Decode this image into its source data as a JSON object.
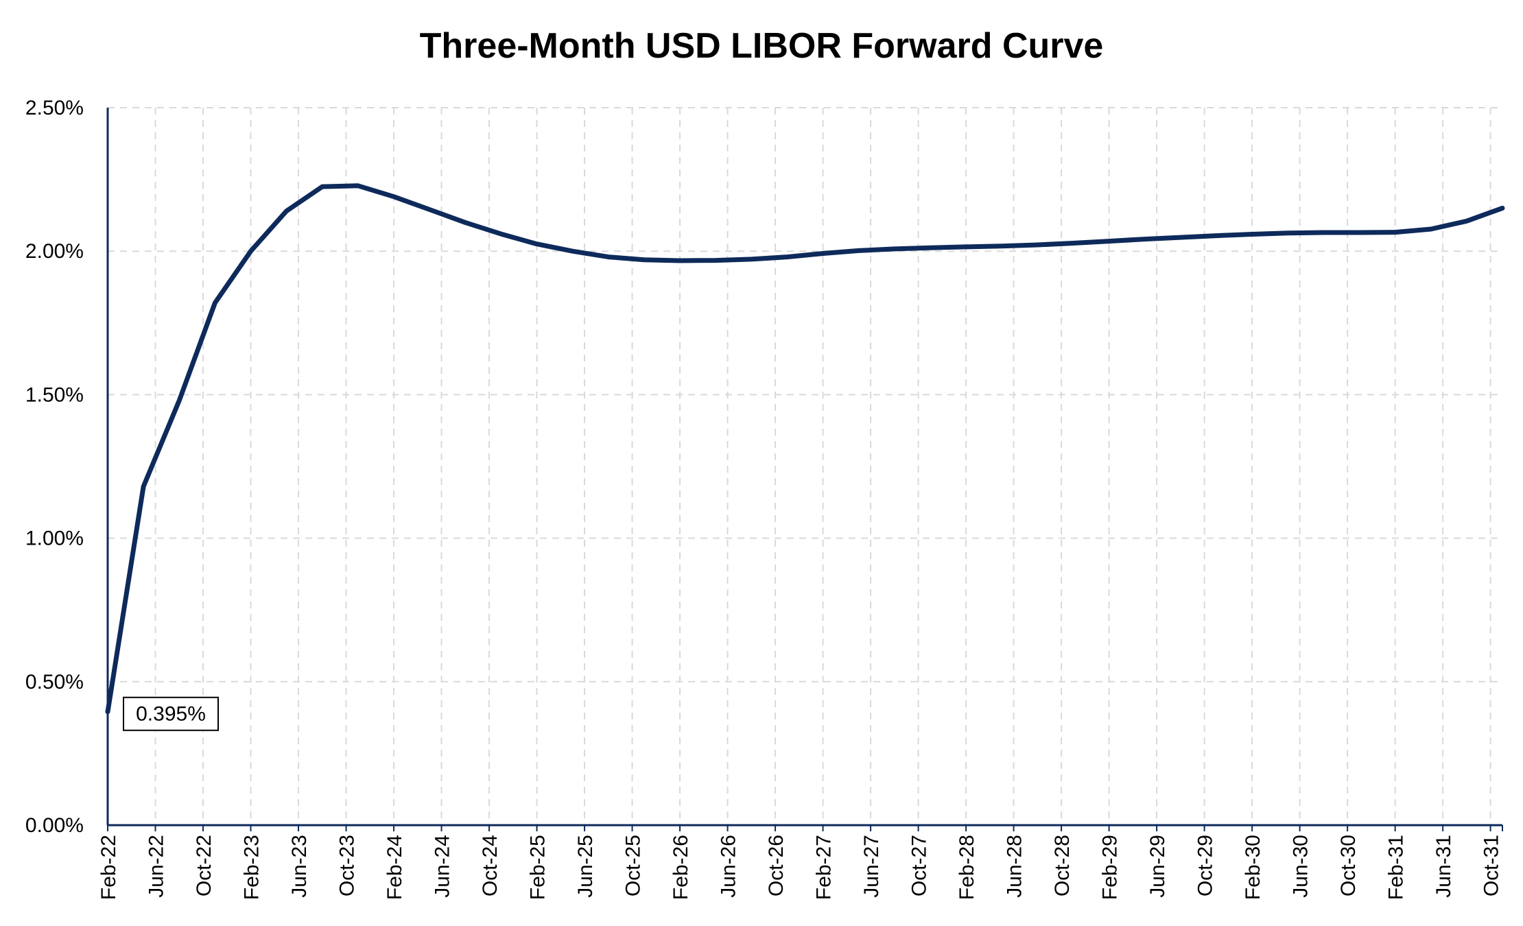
{
  "chart_data": {
    "type": "line",
    "title": "Three-Month USD LIBOR Forward Curve",
    "xlabel": "",
    "ylabel": "",
    "x_tick_labels": [
      "Feb-22",
      "Jun-22",
      "Oct-22",
      "Feb-23",
      "Jun-23",
      "Oct-23",
      "Feb-24",
      "Jun-24",
      "Oct-24",
      "Feb-25",
      "Jun-25",
      "Oct-25",
      "Feb-26",
      "Jun-26",
      "Oct-26",
      "Feb-27",
      "Jun-27",
      "Oct-27",
      "Feb-28",
      "Jun-28",
      "Oct-28",
      "Feb-29",
      "Jun-29",
      "Oct-29",
      "Feb-30",
      "Jun-30",
      "Oct-30",
      "Feb-31",
      "Jun-31",
      "Oct-31"
    ],
    "y_tick_labels": [
      "0.00%",
      "0.50%",
      "1.00%",
      "1.50%",
      "2.00%",
      "2.50%"
    ],
    "ylim": [
      0,
      2.5
    ],
    "y_unit": "%",
    "grid": true,
    "series_color": "#0d2a5b",
    "series": [
      {
        "x": [
          "Feb-22",
          "May-22",
          "Aug-22",
          "Nov-22",
          "Feb-23",
          "May-23",
          "Aug-23",
          "Nov-23",
          "Feb-24",
          "May-24",
          "Aug-24",
          "Nov-24",
          "Feb-25",
          "May-25",
          "Aug-25",
          "Nov-25",
          "Feb-26",
          "May-26",
          "Aug-26",
          "Nov-26",
          "Feb-27",
          "May-27",
          "Aug-27",
          "Nov-27",
          "Feb-28",
          "May-28",
          "Aug-28",
          "Nov-28",
          "Feb-29",
          "May-29",
          "Aug-29",
          "Nov-29",
          "Feb-30",
          "May-30",
          "Aug-30",
          "Nov-30",
          "Feb-31",
          "May-31",
          "Aug-31",
          "Nov-31"
        ],
        "values": [
          0.395,
          1.18,
          1.48,
          1.82,
          2.0,
          2.14,
          2.225,
          2.228,
          2.19,
          2.145,
          2.1,
          2.06,
          2.025,
          2.0,
          1.98,
          1.97,
          1.967,
          1.968,
          1.972,
          1.98,
          1.992,
          2.002,
          2.008,
          2.012,
          2.015,
          2.018,
          2.022,
          2.028,
          2.035,
          2.042,
          2.048,
          2.054,
          2.059,
          2.063,
          2.065,
          2.065,
          2.066,
          2.077,
          2.105,
          2.15
        ]
      }
    ],
    "annotations": [
      {
        "label": "0.395%",
        "x": "Feb-22",
        "value": 0.395
      }
    ]
  }
}
